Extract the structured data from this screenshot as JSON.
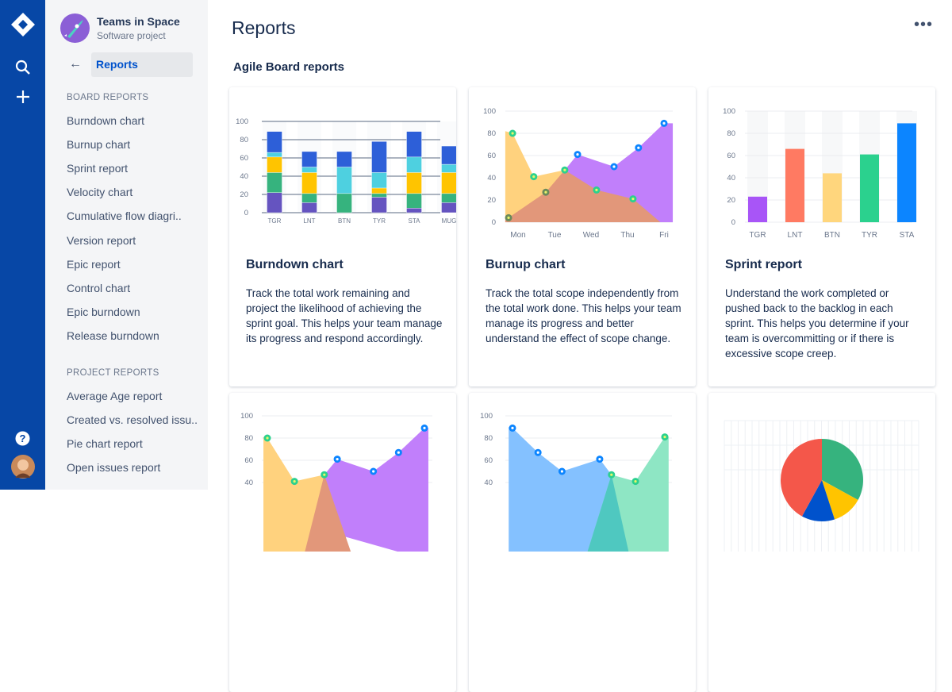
{
  "global_nav": {
    "items": [
      {
        "icon": "jira-logo-icon"
      },
      {
        "icon": "search-icon"
      },
      {
        "icon": "plus-icon"
      },
      {
        "icon": "help-icon"
      },
      {
        "icon": "user-avatar"
      }
    ],
    "color": "#0747A6"
  },
  "sidebar": {
    "project_name": "Teams in Space",
    "project_type": "Software project",
    "current": "Reports",
    "board_heading": "BOARD REPORTS",
    "board_items": [
      "Burndown chart",
      "Burnup chart",
      "Sprint report",
      "Velocity chart",
      "Cumulative flow diagri..",
      "Version report",
      "Epic report",
      "Control chart",
      "Epic burndown",
      "Release burndown"
    ],
    "project_heading": "PROJECT REPORTS",
    "project_items": [
      "Average Age report",
      "Created vs. resolved issu..",
      "Pie chart report",
      "Open issues report"
    ]
  },
  "main": {
    "title": "Reports",
    "more_label": "•••",
    "section": "Agile Board reports",
    "cards": [
      {
        "title": "Burndown chart",
        "desc": "Track the total work remaining and project the likelihood of achieving the sprint goal. This helps your team manage its progress and respond accordingly."
      },
      {
        "title": "Burnup chart",
        "desc": "Track the total scope independently from the total work done. This helps your team manage its progress and better understand the effect of scope change."
      },
      {
        "title": "Sprint report",
        "desc": "Understand the work completed or pushed back to the backlog in each sprint. This helps you determine if your team is overcommitting or if there is excessive scope creep."
      }
    ]
  },
  "chart_data": [
    {
      "type": "bar",
      "stacked": true,
      "categories": [
        "TGR",
        "LNT",
        "BTN",
        "TYR",
        "STA",
        "MUG"
      ],
      "ylim": [
        0,
        100
      ],
      "yticks": [
        "0",
        "20",
        "40",
        "60",
        "80",
        "100"
      ],
      "colors": [
        "#6554C0",
        "#36B37E",
        "#FFC400",
        "#4ED0E0",
        "#2D5FD8"
      ],
      "stacks": [
        [
          22,
          22,
          17,
          5,
          23
        ],
        [
          11,
          10,
          23,
          6,
          17
        ],
        [
          0,
          21,
          0,
          29,
          17
        ],
        [
          17,
          4,
          6,
          17,
          34
        ],
        [
          5,
          16,
          23,
          17,
          28
        ],
        [
          11,
          10,
          23,
          9,
          20
        ]
      ]
    },
    {
      "type": "area",
      "categories": [
        "Mon",
        "Tue",
        "Wed",
        "Thu",
        "Fri"
      ],
      "ylim": [
        0,
        100
      ],
      "yticks": [
        "0",
        "20",
        "40",
        "60",
        "80",
        "100"
      ],
      "areas": [
        {
          "color": "#C17FFB",
          "points": [
            [
              -0.26,
              0
            ],
            [
              1.28,
              47
            ],
            [
              1.63,
              61
            ],
            [
              2.63,
              50
            ],
            [
              3.3,
              67
            ],
            [
              4,
              89
            ],
            [
              4.24,
              89
            ],
            [
              4.24,
              0
            ]
          ]
        },
        {
          "color": "#FFD27E",
          "points": [
            [
              -0.35,
              0
            ],
            [
              -0.35,
              82
            ],
            [
              -0.15,
              80
            ],
            [
              0.43,
              41
            ],
            [
              1.28,
              47
            ],
            [
              1.28,
              0
            ]
          ]
        },
        {
          "color": "#E2977A",
          "points": [
            [
              -0.35,
              0
            ],
            [
              -0.35,
              2
            ],
            [
              -0.26,
              4
            ],
            [
              0.76,
              27
            ],
            [
              1.28,
              47
            ],
            [
              2.15,
              29
            ],
            [
              3.15,
              21
            ],
            [
              3.9,
              0
            ]
          ]
        }
      ],
      "dots": [
        {
          "color": "#2BD18E",
          "points": [
            [
              -0.15,
              80
            ],
            [
              0.43,
              41
            ],
            [
              1.28,
              47
            ],
            [
              2.15,
              29
            ],
            [
              3.15,
              21
            ]
          ]
        },
        {
          "color": "#6B8A5A",
          "points": [
            [
              -0.26,
              4
            ],
            [
              0.76,
              27
            ]
          ]
        },
        {
          "color": "#0C85FF",
          "points": [
            [
              1.63,
              61
            ],
            [
              2.63,
              50
            ],
            [
              3.3,
              67
            ],
            [
              4,
              89
            ]
          ]
        }
      ]
    },
    {
      "type": "bar",
      "categories": [
        "TGR",
        "LNT",
        "BTN",
        "TYR",
        "STA"
      ],
      "values": [
        23,
        66,
        44,
        61,
        89
      ],
      "ylim": [
        0,
        100
      ],
      "yticks": [
        "0",
        "20",
        "40",
        "60",
        "80",
        "100"
      ],
      "colors": [
        "#A855F7",
        "#FF7A62",
        "#FFD67D",
        "#2BD18E",
        "#0C85FF"
      ]
    },
    {
      "type": "area",
      "ylim": [
        0,
        100
      ],
      "yticks": [
        "40",
        "60",
        "80",
        "100"
      ],
      "areas": [
        {
          "color": "#C17FFB",
          "points": [
            [
              1.1,
              0
            ],
            [
              1.45,
              47
            ],
            [
              1.78,
              61
            ],
            [
              2.7,
              50
            ],
            [
              3.34,
              67
            ],
            [
              4,
              89
            ],
            [
              4.1,
              89
            ],
            [
              4.1,
              -30
            ]
          ]
        },
        {
          "color": "#FFD27E",
          "points": [
            [
              -0.1,
              -30
            ],
            [
              -0.1,
              81
            ],
            [
              0,
              80
            ],
            [
              0.69,
              41
            ],
            [
              1.45,
              47
            ],
            [
              1.45,
              -30
            ]
          ]
        },
        {
          "color": "#E2977A",
          "points": [
            [
              0.9,
              -30
            ],
            [
              1.45,
              47
            ],
            [
              2.2,
              -30
            ]
          ]
        }
      ],
      "dots": [
        {
          "color": "#2BD18E",
          "points": [
            [
              0,
              80
            ],
            [
              0.69,
              41
            ],
            [
              1.45,
              47
            ]
          ]
        },
        {
          "color": "#0C85FF",
          "points": [
            [
              1.78,
              61
            ],
            [
              2.7,
              50
            ],
            [
              3.34,
              67
            ],
            [
              4,
              89
            ]
          ]
        }
      ]
    },
    {
      "type": "area",
      "ylim": [
        0,
        100
      ],
      "yticks": [
        "40",
        "60",
        "80",
        "100"
      ],
      "areas": [
        {
          "color": "#84C1FF",
          "points": [
            [
              -0.1,
              -30
            ],
            [
              -0.1,
              90
            ],
            [
              0,
              89
            ],
            [
              0.67,
              67
            ],
            [
              1.3,
              50
            ],
            [
              2.29,
              61
            ],
            [
              2.6,
              47
            ],
            [
              3.3,
              -30
            ]
          ]
        },
        {
          "color": "#8EE6C4",
          "points": [
            [
              1.9,
              -30
            ],
            [
              2.6,
              47
            ],
            [
              3.23,
              41
            ],
            [
              4,
              81
            ],
            [
              4.1,
              81
            ],
            [
              4.1,
              -30
            ]
          ]
        },
        {
          "color": "#4FC8C0",
          "points": [
            [
              1.9,
              -30
            ],
            [
              2.6,
              47
            ],
            [
              3.1,
              -30
            ]
          ]
        }
      ],
      "dots": [
        {
          "color": "#0C85FF",
          "points": [
            [
              0,
              89
            ],
            [
              0.67,
              67
            ],
            [
              1.3,
              50
            ],
            [
              2.29,
              61
            ]
          ]
        },
        {
          "color": "#2BD18E",
          "points": [
            [
              2.6,
              47
            ],
            [
              3.23,
              41
            ],
            [
              4,
              81
            ]
          ]
        }
      ]
    },
    {
      "type": "pie",
      "slices": [
        {
          "color": "#36B37E",
          "value": 33
        },
        {
          "color": "#FFC400",
          "value": 12
        },
        {
          "color": "#0052CC",
          "value": 13
        },
        {
          "color": "#F4574A",
          "value": 42
        }
      ]
    }
  ]
}
